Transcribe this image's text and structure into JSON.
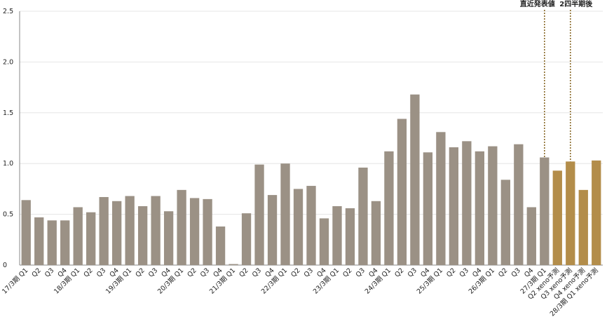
{
  "chart_data": {
    "type": "bar",
    "categories": [
      "17/3期 Q1",
      "Q2",
      "Q3",
      "Q4",
      "18/3期 Q1",
      "Q2",
      "Q3",
      "Q4",
      "19/3期 Q1",
      "Q2",
      "Q3",
      "Q4",
      "20/3期 Q1",
      "Q2",
      "Q3",
      "Q4",
      "21/3期 Q1",
      "Q2",
      "Q3",
      "Q4",
      "22/3期 Q1",
      "Q2",
      "Q3",
      "Q4",
      "23/3期 Q1",
      "Q2",
      "Q3",
      "Q4",
      "24/3期 Q1",
      "Q2",
      "Q3",
      "Q4",
      "25/3期 Q1",
      "Q2",
      "Q3",
      "Q4",
      "26/3期 Q1",
      "Q2",
      "Q3",
      "Q4",
      "27/3期 Q1",
      "Q2 xeno予測",
      "Q3 xeno予測",
      "Q4 xeno予測",
      "28/3期 Q1 xeno予測"
    ],
    "values": [
      0.64,
      0.47,
      0.44,
      0.44,
      0.57,
      0.52,
      0.67,
      0.63,
      0.68,
      0.58,
      0.68,
      0.53,
      0.74,
      0.66,
      0.65,
      0.38,
      0.01,
      0.51,
      0.99,
      0.69,
      1.0,
      0.75,
      0.78,
      0.46,
      0.58,
      0.56,
      0.96,
      0.63,
      1.12,
      1.44,
      1.68,
      1.11,
      1.31,
      1.16,
      1.22,
      1.12,
      1.17,
      0.84,
      1.19,
      0.57,
      1.06,
      0.93,
      1.02,
      0.74,
      1.03
    ],
    "colors": [
      "#9b9185",
      "#9b9185",
      "#9b9185",
      "#9b9185",
      "#9b9185",
      "#9b9185",
      "#9b9185",
      "#9b9185",
      "#9b9185",
      "#9b9185",
      "#9b9185",
      "#9b9185",
      "#9b9185",
      "#9b9185",
      "#9b9185",
      "#9b9185",
      "#9b9185",
      "#9b9185",
      "#9b9185",
      "#9b9185",
      "#9b9185",
      "#9b9185",
      "#9b9185",
      "#9b9185",
      "#9b9185",
      "#9b9185",
      "#9b9185",
      "#9b9185",
      "#9b9185",
      "#9b9185",
      "#9b9185",
      "#9b9185",
      "#9b9185",
      "#9b9185",
      "#9b9185",
      "#9b9185",
      "#9b9185",
      "#9b9185",
      "#9b9185",
      "#9b9185",
      "#9b9185",
      "#b38d4a",
      "#b38d4a",
      "#b38d4a",
      "#b38d4a"
    ],
    "ylim": [
      0,
      2.5
    ],
    "yticks": [
      0,
      0.5,
      {
        "value": 1,
        "label": "1.0"
      },
      1.5,
      {
        "value": 2,
        "label": "2.0"
      },
      2.5
    ],
    "grid": true,
    "annotations": [
      {
        "label": "直近発表値",
        "category": "27/3期 Q1",
        "color": "#8a6a2a"
      },
      {
        "label": "2四半期後",
        "category": "Q3 xeno予測",
        "color": "#8a6a2a"
      }
    ]
  }
}
